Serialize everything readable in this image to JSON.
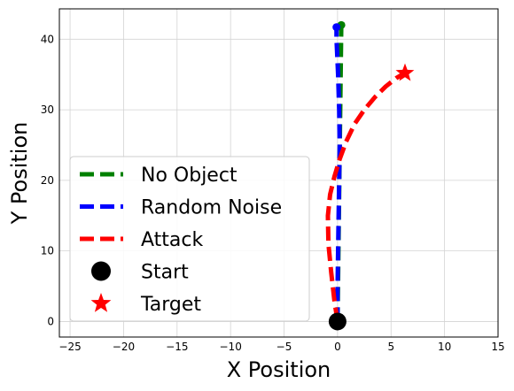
{
  "chart_data": {
    "type": "line",
    "title": "",
    "xlabel": "X Position",
    "ylabel": "Y Position",
    "xlim": [
      -26,
      15
    ],
    "ylim": [
      -2.2,
      44.3
    ],
    "xticks": [
      -25,
      -20,
      -15,
      -10,
      -5,
      0,
      5,
      10,
      15
    ],
    "yticks": [
      0,
      10,
      20,
      30,
      40
    ],
    "grid": true,
    "legend_position": "lower-left",
    "series": [
      {
        "name": "No Object",
        "color": "#008000",
        "style": "dashed",
        "x": [
          0.0,
          0.05,
          0.1,
          0.15,
          0.2,
          0.25,
          0.3,
          0.35
        ],
        "y": [
          0,
          6,
          12,
          18,
          24,
          30,
          36,
          42
        ]
      },
      {
        "name": "Random Noise",
        "color": "#0000ff",
        "style": "dashed",
        "x": [
          0.0,
          0.0,
          0.05,
          0.1,
          0.15,
          0.2,
          0.15,
          0.05,
          -0.1,
          -0.1
        ],
        "y": [
          0,
          5,
          10,
          15,
          20,
          25,
          30,
          35,
          40,
          41.7
        ]
      },
      {
        "name": "Attack",
        "color": "#ff0000",
        "style": "dashed",
        "x": [
          0.0,
          -0.3,
          -0.6,
          -0.85,
          -0.9,
          -0.7,
          -0.3,
          0.2,
          0.8,
          1.6,
          2.5,
          3.5,
          4.5,
          5.5,
          6.3
        ],
        "y": [
          0,
          3,
          7,
          11,
          15,
          18,
          20.5,
          23,
          25.5,
          28,
          30,
          31.8,
          33.3,
          34.5,
          35.2
        ]
      }
    ],
    "markers": [
      {
        "name": "Start",
        "shape": "circle",
        "color": "#000000",
        "x": 0,
        "y": 0
      },
      {
        "name": "Target",
        "shape": "star",
        "color": "#ff0000",
        "x": 6.3,
        "y": 35.2
      }
    ],
    "endpoint_dots": [
      {
        "color": "#008000",
        "x": 0.35,
        "y": 42
      },
      {
        "color": "#0000ff",
        "x": -0.1,
        "y": 41.7
      }
    ]
  }
}
